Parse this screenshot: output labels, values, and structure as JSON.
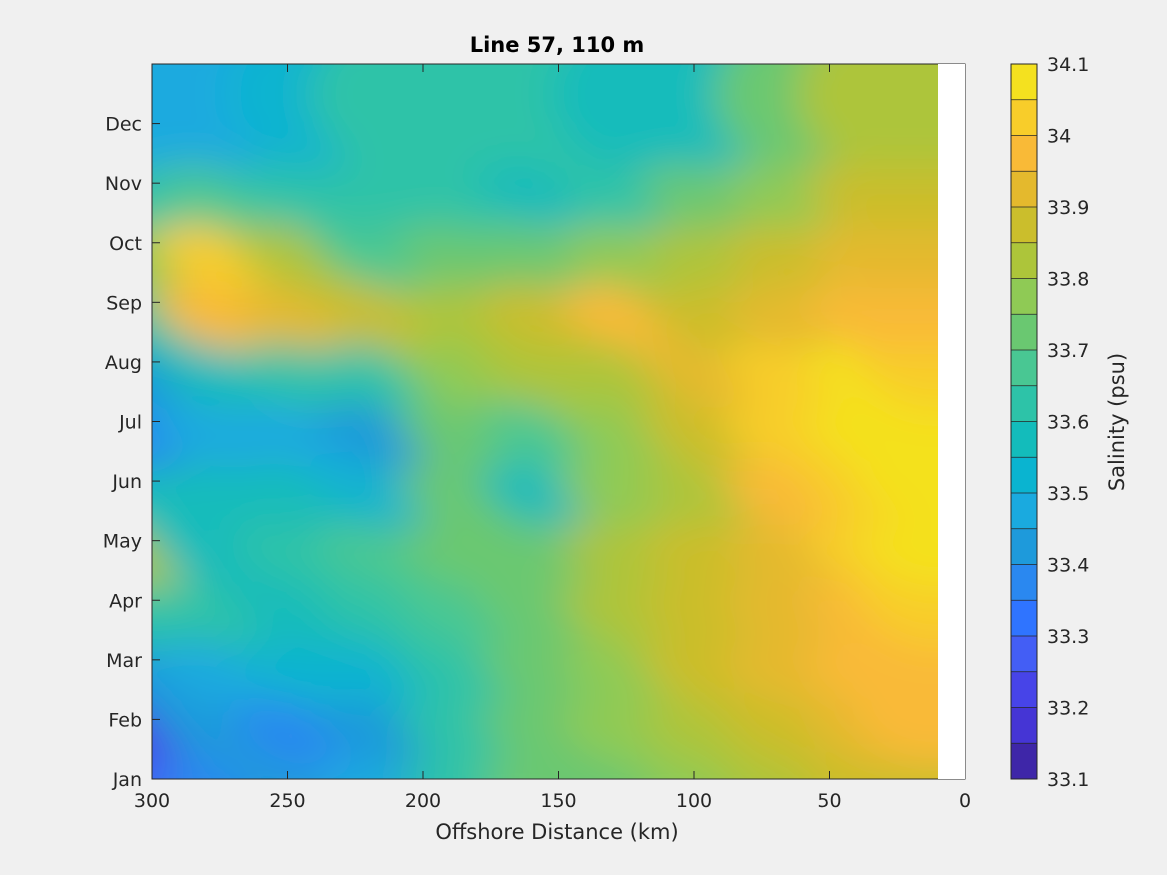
{
  "chart_data": {
    "type": "heatmap",
    "subtype": "filled-contour",
    "title": "Line 57, 110 m",
    "xlabel": "Offshore Distance (km)",
    "ylabel": "",
    "xlim": [
      300,
      0
    ],
    "x_ticks": [
      "300",
      "250",
      "200",
      "150",
      "100",
      "50",
      "0"
    ],
    "x_tick_values": [
      300,
      250,
      200,
      150,
      100,
      50,
      0
    ],
    "y_ticks": [
      "Jan",
      "Feb",
      "Mar",
      "Apr",
      "May",
      "Jun",
      "Jul",
      "Aug",
      "Sep",
      "Oct",
      "Nov",
      "Dec"
    ],
    "colorbar": {
      "label": "Salinity (psu)",
      "range": [
        33.1,
        34.1
      ],
      "levels": [
        33.1,
        33.15,
        33.2,
        33.25,
        33.3,
        33.35,
        33.4,
        33.45,
        33.5,
        33.55,
        33.6,
        33.65,
        33.7,
        33.75,
        33.8,
        33.85,
        33.9,
        33.95,
        34.0,
        34.05,
        34.1
      ],
      "tick_labels": [
        "33.1",
        "33.2",
        "33.3",
        "33.4",
        "33.5",
        "33.6",
        "33.7",
        "33.8",
        "33.9",
        "34",
        "34.1"
      ],
      "tick_values": [
        33.1,
        33.2,
        33.3,
        33.4,
        33.5,
        33.6,
        33.7,
        33.8,
        33.9,
        34.0,
        34.1
      ],
      "colormap": "parula",
      "colors": [
        "#3e26a8",
        "#4535d5",
        "#4744e8",
        "#435ef5",
        "#2f74ff",
        "#2a88f0",
        "#1e9adb",
        "#1aaadf",
        "#0ab4d0",
        "#13bcbb",
        "#2dc3a8",
        "#49c793",
        "#6ac871",
        "#8fca55",
        "#adc53a",
        "#cbbe2c",
        "#e4b92d",
        "#f9ba37",
        "#f8cd2a",
        "#f4e11f"
      ]
    },
    "grid": false,
    "legend": "colorbar-right",
    "salinity_field": {
      "note": "approximate salinity (psu) values; x = offshore distance (km), y = month",
      "x_km": [
        300,
        270,
        240,
        210,
        180,
        150,
        120,
        90,
        60,
        30,
        10
      ],
      "months": [
        "Jan",
        "Feb",
        "Mar",
        "Apr",
        "May",
        "Jun",
        "Jul",
        "Aug",
        "Sep",
        "Oct",
        "Nov",
        "Dec"
      ],
      "values": [
        [
          33.25,
          33.35,
          33.4,
          33.45,
          33.6,
          33.7,
          33.72,
          33.75,
          33.82,
          33.86,
          33.86
        ],
        [
          33.22,
          33.4,
          33.35,
          33.42,
          33.6,
          33.7,
          33.75,
          33.8,
          33.88,
          33.92,
          33.95
        ],
        [
          33.4,
          33.48,
          33.5,
          33.52,
          33.62,
          33.7,
          33.78,
          33.85,
          33.9,
          33.95,
          33.98
        ],
        [
          33.62,
          33.6,
          33.58,
          33.6,
          33.66,
          33.72,
          33.82,
          33.88,
          33.9,
          33.98,
          34.04
        ],
        [
          33.8,
          33.58,
          33.62,
          33.66,
          33.72,
          33.72,
          33.8,
          33.88,
          33.92,
          34.0,
          34.08
        ],
        [
          33.55,
          33.55,
          33.55,
          33.5,
          33.7,
          33.55,
          33.76,
          33.84,
          33.95,
          34.02,
          34.05
        ],
        [
          33.35,
          33.45,
          33.45,
          33.42,
          33.72,
          33.65,
          33.78,
          33.85,
          34.0,
          34.05,
          34.05
        ],
        [
          33.4,
          33.55,
          33.6,
          33.62,
          33.76,
          33.8,
          33.82,
          33.9,
          34.0,
          34.05,
          34.04
        ],
        [
          33.6,
          33.95,
          33.9,
          33.85,
          33.82,
          33.85,
          33.95,
          33.88,
          33.92,
          33.98,
          33.98
        ],
        [
          33.75,
          34.02,
          33.82,
          33.65,
          33.7,
          33.72,
          33.76,
          33.82,
          33.88,
          33.92,
          33.92
        ],
        [
          33.6,
          33.65,
          33.6,
          33.62,
          33.6,
          33.58,
          33.6,
          33.7,
          33.78,
          33.85,
          33.86
        ],
        [
          33.45,
          33.48,
          33.52,
          33.6,
          33.62,
          33.6,
          33.55,
          33.58,
          33.72,
          33.8,
          33.8
        ]
      ]
    }
  }
}
